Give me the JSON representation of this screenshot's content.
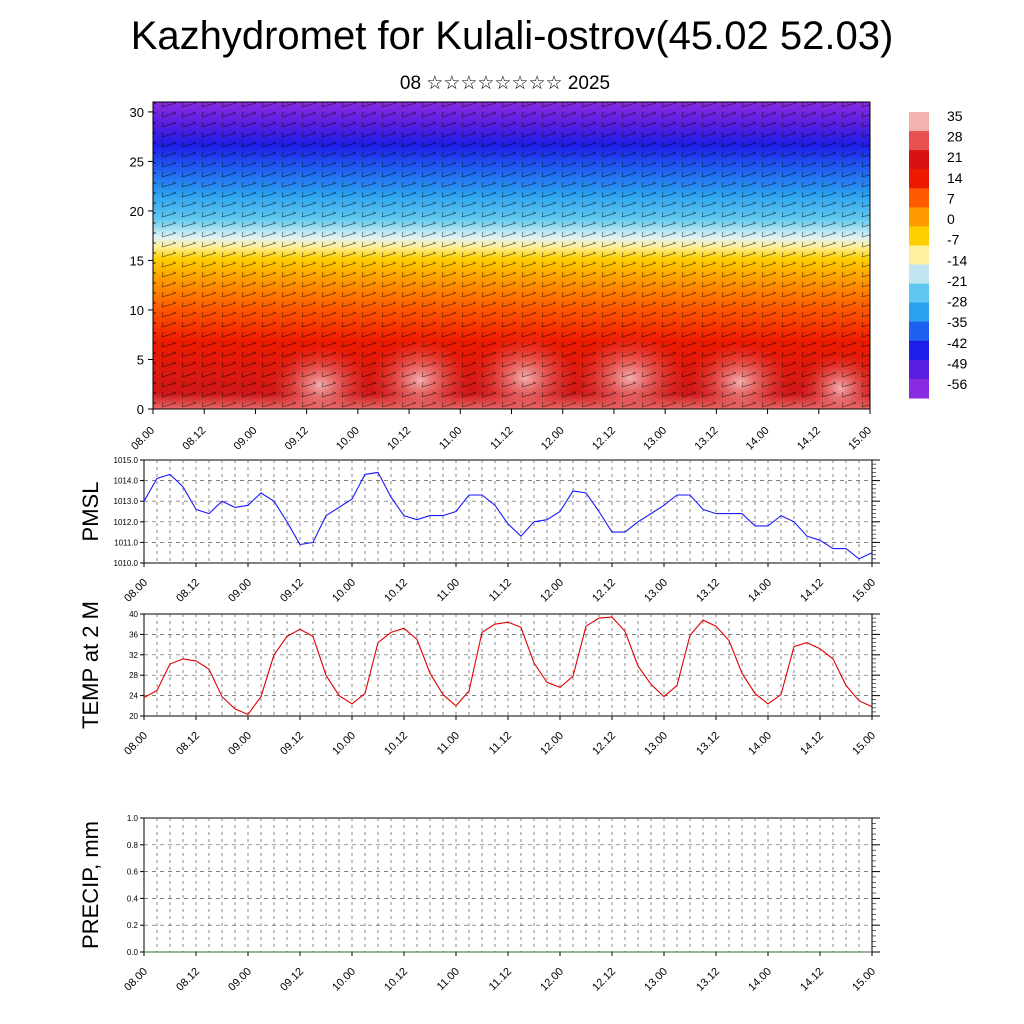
{
  "header": {
    "title": "Kazhydromet for Kulali-ostrov(45.02 52.03)",
    "subtitle": "08 ☆☆☆☆☆☆☆☆ 2025"
  },
  "colors": {
    "pmsl_line": "#1a1aff",
    "temp_line": "#e00000",
    "precip_line": "#2f6b2f",
    "colorbar": [
      "#8a2be2",
      "#5a1ee0",
      "#1e1ee8",
      "#2060f0",
      "#2aa0f0",
      "#60c8f0",
      "#bfe6f0",
      "#fff0a0",
      "#ffd000",
      "#ff9a00",
      "#ff5a00",
      "#ee1a00",
      "#d81010",
      "#e85050",
      "#f5b0b0"
    ]
  },
  "chart_data": [
    {
      "type": "heatmap",
      "title": "Kazhydromet for Kulali-ostrov(45.02 52.03)",
      "subtitle": "08 ☆☆☆☆☆☆☆☆ 2025",
      "xlabel": "",
      "ylabel": "",
      "x_ticks": [
        "08.00",
        "08.12",
        "09.00",
        "09.12",
        "10.00",
        "10.12",
        "11.00",
        "11.12",
        "12.00",
        "12.12",
        "13.00",
        "13.12",
        "14.00",
        "14.12",
        "15.00"
      ],
      "y_ticks": [
        0,
        5,
        10,
        15,
        20,
        25,
        30
      ],
      "ylim": [
        0,
        31
      ],
      "colorbar_labels": [
        "35",
        "28",
        "21",
        "14",
        "7",
        "0",
        "-7",
        "-14",
        "-21",
        "-28",
        "-35",
        "-42",
        "-49",
        "-56"
      ],
      "overlay": "wind vectors"
    },
    {
      "type": "line",
      "ylabel": "PMSL",
      "ylim": [
        1010.0,
        1015.0
      ],
      "y_ticks": [
        "1010.0",
        "1011.0",
        "1012.0",
        "1013.0",
        "1014.0",
        "1015.0"
      ],
      "x_ticks": [
        "08.00",
        "08.12",
        "09.00",
        "09.12",
        "10.00",
        "10.12",
        "11.00",
        "11.12",
        "12.00",
        "12.12",
        "13.00",
        "13.12",
        "14.00",
        "14.12",
        "15.00"
      ],
      "values": [
        1013.0,
        1014.1,
        1014.3,
        1013.7,
        1012.6,
        1012.4,
        1013.0,
        1012.7,
        1012.8,
        1013.4,
        1013.0,
        1012.0,
        1010.9,
        1011.0,
        1012.3,
        1012.7,
        1013.1,
        1014.3,
        1014.4,
        1013.2,
        1012.3,
        1012.1,
        1012.3,
        1012.3,
        1012.5,
        1013.3,
        1013.3,
        1012.8,
        1011.9,
        1011.3,
        1012.0,
        1012.1,
        1012.5,
        1013.5,
        1013.4,
        1012.5,
        1011.5,
        1011.5,
        1012.0,
        1012.4,
        1012.8,
        1013.3,
        1013.3,
        1012.6,
        1012.4,
        1012.4,
        1012.4,
        1011.8,
        1011.8,
        1012.3,
        1012.0,
        1011.3,
        1011.1,
        1010.7,
        1010.7,
        1010.2,
        1010.5
      ]
    },
    {
      "type": "line",
      "ylabel": "TEMP at 2 M",
      "ylim": [
        20,
        40
      ],
      "y_ticks": [
        "20",
        "24",
        "28",
        "32",
        "36",
        "40"
      ],
      "x_ticks": [
        "08.00",
        "08.12",
        "09.00",
        "09.12",
        "10.00",
        "10.12",
        "11.00",
        "11.12",
        "12.00",
        "12.12",
        "13.00",
        "13.12",
        "14.00",
        "14.12",
        "15.00"
      ],
      "values": [
        23.6,
        25.0,
        30.2,
        31.2,
        30.8,
        29.2,
        23.8,
        21.4,
        20.3,
        23.8,
        32.0,
        35.6,
        37.0,
        35.6,
        28.0,
        24.0,
        22.4,
        24.4,
        34.4,
        36.4,
        37.2,
        35.0,
        28.4,
        24.2,
        22.0,
        24.9,
        36.4,
        38.0,
        38.4,
        37.4,
        30.4,
        26.6,
        25.6,
        27.8,
        37.6,
        39.2,
        39.4,
        36.6,
        29.8,
        26.2,
        23.8,
        26.0,
        35.8,
        38.8,
        37.6,
        34.8,
        28.4,
        24.4,
        22.4,
        24.2,
        33.6,
        34.4,
        33.2,
        31.2,
        26.0,
        23.0,
        21.8
      ]
    },
    {
      "type": "line",
      "ylabel": "PRECIP, mm",
      "ylim": [
        0.0,
        1.0
      ],
      "y_ticks": [
        "0.0",
        "0.2",
        "0.4",
        "0.6",
        "0.8",
        "1.0"
      ],
      "x_ticks": [
        "08.00",
        "08.12",
        "09.00",
        "09.12",
        "10.00",
        "10.12",
        "11.00",
        "11.12",
        "12.00",
        "12.12",
        "13.00",
        "13.12",
        "14.00",
        "14.12",
        "15.00"
      ],
      "values": [
        0,
        0,
        0,
        0,
        0,
        0,
        0,
        0,
        0,
        0,
        0,
        0,
        0,
        0,
        0,
        0,
        0,
        0,
        0,
        0,
        0,
        0,
        0,
        0,
        0,
        0,
        0,
        0,
        0,
        0,
        0,
        0,
        0,
        0,
        0,
        0,
        0,
        0,
        0,
        0,
        0,
        0,
        0,
        0,
        0,
        0,
        0,
        0,
        0,
        0,
        0,
        0,
        0,
        0,
        0,
        0,
        0
      ]
    }
  ]
}
